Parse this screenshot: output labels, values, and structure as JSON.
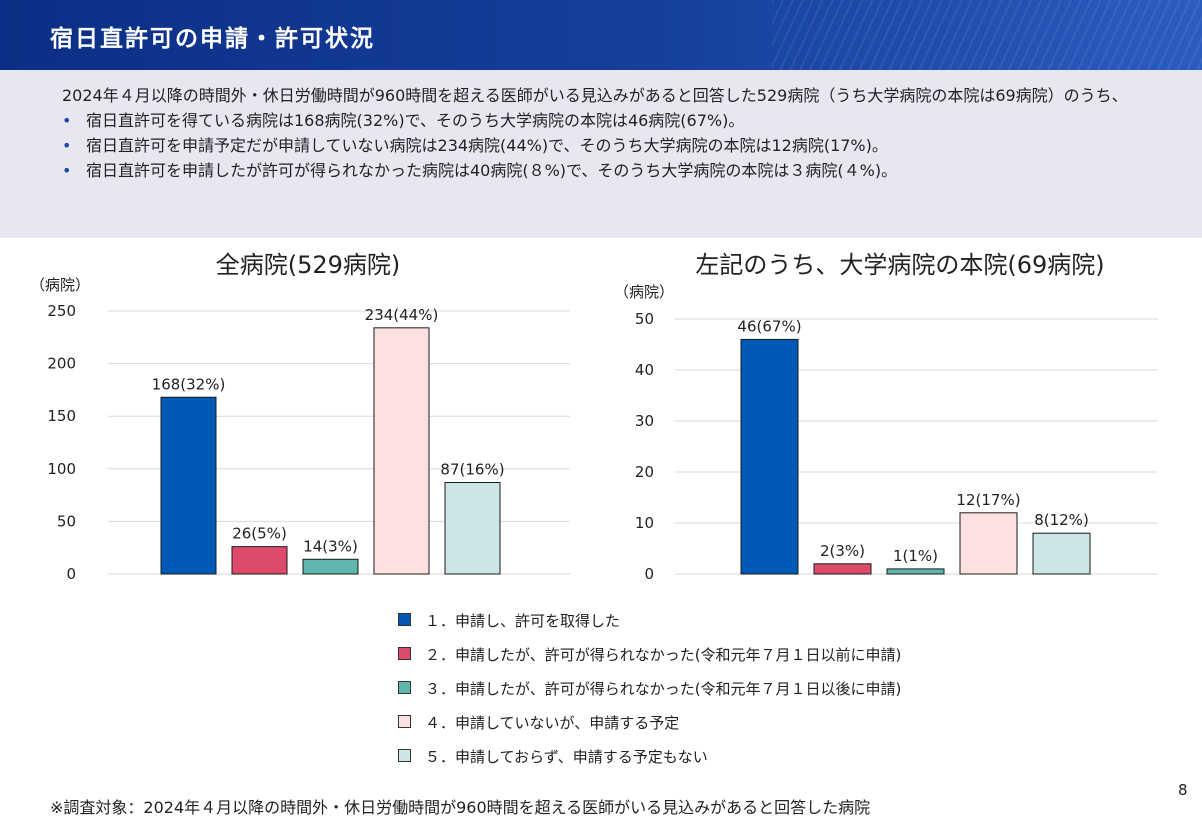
{
  "header": {
    "title": "宿日直許可の申請・許可状況"
  },
  "summary": {
    "intro": "2024年４月以降の時間外・休日労働時間が960時間を超える医師がいる見込みがあると回答した529病院（うち大学病院の本院は69病院）のうち、",
    "bullets": [
      "宿日直許可を得ている病院は168病院(32%)で、そのうち大学病院の本院は46病院(67%)。",
      "宿日直許可を申請予定だが申請していない病院は234病院(44%)で、そのうち大学病院の本院は12病院(17%)。",
      "宿日直許可を申請したが許可が得られなかった病院は40病院(８%)で、そのうち大学病院の本院は３病院(４%)。"
    ]
  },
  "chart_data": [
    {
      "type": "bar",
      "title": "全病院(529病院)",
      "ylabel": "（病院）",
      "ylim": [
        0,
        250
      ],
      "yticks": [
        0,
        50,
        100,
        150,
        200,
        250
      ],
      "grid": true,
      "categories": [
        "１．申請し、許可を取得した",
        "２．申請したが、許可が得られなかった(令和元年７月１日以前に申請)",
        "３．申請したが、許可が得られなかった(令和元年７月１日以後に申請)",
        "４．申請していないが、申請する予定",
        "５．申請しておらず、申請する予定もない"
      ],
      "values": [
        168,
        26,
        14,
        234,
        87
      ],
      "data_labels": [
        "168(32%)",
        "26(5%)",
        "14(3%)",
        "234(44%)",
        "87(16%)"
      ]
    },
    {
      "type": "bar",
      "title": "左記のうち、大学病院の本院(69病院)",
      "ylabel": "（病院）",
      "ylim": [
        0,
        50
      ],
      "yticks": [
        0,
        10,
        20,
        30,
        40,
        50
      ],
      "grid": true,
      "categories": [
        "１．申請し、許可を取得した",
        "２．申請したが、許可が得られなかった(令和元年７月１日以前に申請)",
        "３．申請したが、許可が得られなかった(令和元年７月１日以後に申請)",
        "４．申請していないが、申請する予定",
        "５．申請しておらず、申請する予定もない"
      ],
      "values": [
        46,
        2,
        1,
        12,
        8
      ],
      "data_labels": [
        "46(67%)",
        "2(3%)",
        "1(1%)",
        "12(17%)",
        "8(12%)"
      ]
    }
  ],
  "legend": {
    "placement": "bottom-center",
    "items": [
      {
        "label": "１．申請し、許可を取得した",
        "color": "#0058b7"
      },
      {
        "label": "２．申請したが、許可が得られなかった(令和元年７月１日以前に申請)",
        "color": "#de4a6a"
      },
      {
        "label": "３．申請したが、許可が得られなかった(令和元年７月１日以後に申請)",
        "color": "#5fb6ac"
      },
      {
        "label": "４．申請していないが、申請する予定",
        "color": "#fde0e0"
      },
      {
        "label": "５．申請しておらず、申請する予定もない",
        "color": "#cbe6e5"
      }
    ]
  },
  "footnote": "※調査対象：2024年４月以降の時間外・休日労働時間が960時間を超える医師がいる見込みがあると回答した病院",
  "page_number": "8"
}
